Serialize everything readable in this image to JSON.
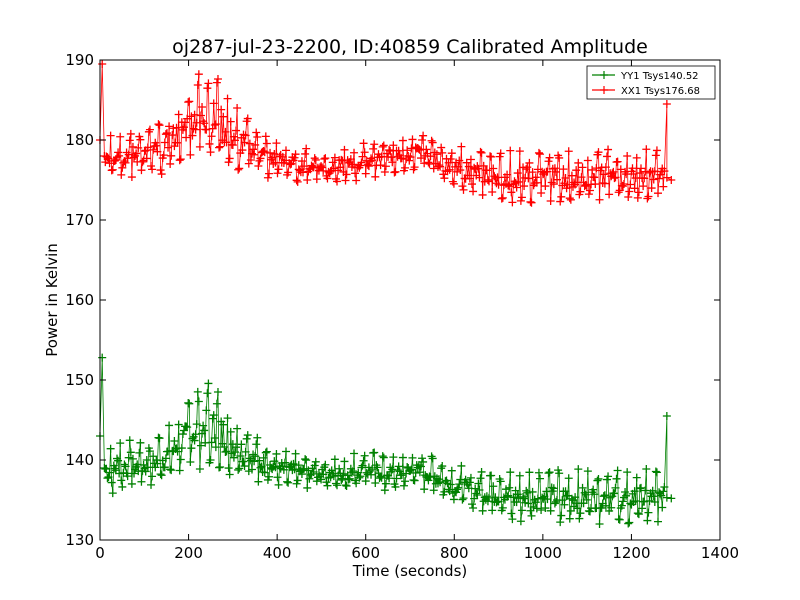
{
  "chart_data": {
    "type": "line",
    "title": "oj287-jul-23-2200, ID:40859 Calibrated Amplitude",
    "xlabel": "Time (seconds)",
    "ylabel": "Power in Kelvin",
    "xlim": [
      0,
      1400
    ],
    "ylim": [
      130,
      190
    ],
    "xticks": [
      "0",
      "200",
      "400",
      "600",
      "800",
      "1000",
      "1200",
      "1400"
    ],
    "yticks": [
      "130",
      "140",
      "150",
      "160",
      "170",
      "180",
      "190"
    ],
    "grid": false,
    "legend_position": "top-right",
    "marker": "+",
    "series": [
      {
        "name": "YY1 Tsys140.52",
        "color": "#008000",
        "x": [
          0,
          5,
          10,
          20,
          40,
          60,
          80,
          100,
          120,
          140,
          160,
          180,
          200,
          220,
          240,
          260,
          280,
          300,
          320,
          340,
          360,
          380,
          400,
          420,
          440,
          460,
          480,
          500,
          520,
          540,
          560,
          580,
          600,
          620,
          640,
          660,
          680,
          700,
          720,
          740,
          760,
          780,
          800,
          820,
          840,
          860,
          880,
          900,
          920,
          940,
          960,
          980,
          1000,
          1020,
          1040,
          1060,
          1080,
          1100,
          1120,
          1140,
          1160,
          1180,
          1200,
          1220,
          1240,
          1260,
          1275,
          1280,
          1290
        ],
        "y": [
          143,
          152.8,
          139,
          138.5,
          139.5,
          139.2,
          139,
          139.3,
          139.6,
          140,
          141,
          142,
          143,
          143.8,
          144,
          143.8,
          143,
          142,
          141,
          140.2,
          139.6,
          139.2,
          139,
          138.8,
          138.6,
          138.4,
          138.3,
          138.2,
          138.1,
          138.2,
          138.4,
          138.6,
          138.7,
          138.6,
          138.4,
          138.3,
          138.4,
          138.6,
          138.6,
          138.3,
          137.8,
          137.2,
          136.8,
          136.5,
          136.2,
          136,
          135.8,
          135.6,
          135.5,
          135.4,
          135.4,
          135.3,
          135.3,
          135.3,
          135.3,
          135.3,
          135.3,
          135.3,
          135.3,
          135.3,
          135.3,
          135.3,
          135.3,
          135.3,
          135.3,
          135.3,
          135.3,
          145.5,
          135.2
        ],
        "spread": [
          2,
          0,
          2,
          3,
          3,
          3,
          2.5,
          2.5,
          2.5,
          3,
          3,
          3.5,
          4,
          4.5,
          5,
          5,
          4.5,
          4,
          3.5,
          3,
          2.5,
          2.5,
          2,
          2,
          2,
          2,
          1.5,
          1.5,
          1.5,
          2,
          2,
          2,
          2,
          2,
          2,
          2,
          2,
          2,
          2,
          2,
          2,
          2,
          2,
          2.5,
          2.5,
          2.5,
          2.5,
          2.5,
          3,
          3,
          3,
          3,
          3,
          3,
          3,
          3,
          3,
          3,
          3,
          3,
          3,
          3,
          3,
          3,
          3,
          3,
          3,
          0,
          0
        ]
      },
      {
        "name": "XX1 Tsys176.68",
        "color": "#ff0000",
        "x": [
          0,
          5,
          10,
          20,
          40,
          60,
          80,
          100,
          120,
          140,
          160,
          180,
          200,
          220,
          240,
          260,
          280,
          300,
          320,
          340,
          360,
          380,
          400,
          420,
          440,
          460,
          480,
          500,
          520,
          540,
          560,
          580,
          600,
          620,
          640,
          660,
          680,
          700,
          720,
          740,
          760,
          780,
          800,
          820,
          840,
          860,
          880,
          900,
          920,
          940,
          960,
          980,
          1000,
          1020,
          1040,
          1060,
          1080,
          1100,
          1120,
          1140,
          1160,
          1180,
          1200,
          1220,
          1240,
          1260,
          1275,
          1280,
          1290
        ],
        "y": [
          180,
          189.5,
          178,
          178,
          178.5,
          178.2,
          178,
          178.3,
          178.6,
          179,
          180,
          181,
          182,
          183,
          183,
          182.5,
          181.5,
          180.5,
          179.5,
          178.8,
          178.2,
          177.8,
          177.5,
          177.2,
          177,
          176.8,
          176.6,
          176.5,
          176.5,
          176.6,
          176.8,
          177,
          177.3,
          177.5,
          177.8,
          178,
          178.2,
          178.3,
          178.3,
          178,
          177.5,
          177,
          176.6,
          176.3,
          176,
          175.8,
          175.6,
          175.5,
          175.4,
          175.4,
          175.3,
          175.3,
          175.3,
          175.3,
          175.3,
          175.3,
          175.3,
          175.3,
          175.3,
          175.3,
          175.3,
          175.3,
          175.3,
          175.3,
          175.3,
          175.3,
          175.3,
          184.5,
          175
        ],
        "spread": [
          2,
          0,
          2,
          3,
          3,
          3,
          2.5,
          2.5,
          2.5,
          3,
          3,
          3.5,
          4,
          4.5,
          5,
          5,
          4.5,
          4,
          3.5,
          3,
          2.5,
          2.5,
          2,
          2,
          2,
          2,
          1.5,
          1.5,
          1.5,
          2,
          2,
          2,
          2,
          2,
          2,
          2,
          2,
          2,
          2,
          2,
          2,
          2,
          2,
          2.5,
          2.5,
          2.5,
          2.5,
          2.5,
          3,
          3,
          3,
          3,
          3,
          3,
          3,
          3,
          3,
          3,
          3,
          3,
          3,
          3,
          3,
          3,
          3,
          3,
          3,
          0,
          0
        ]
      }
    ]
  }
}
